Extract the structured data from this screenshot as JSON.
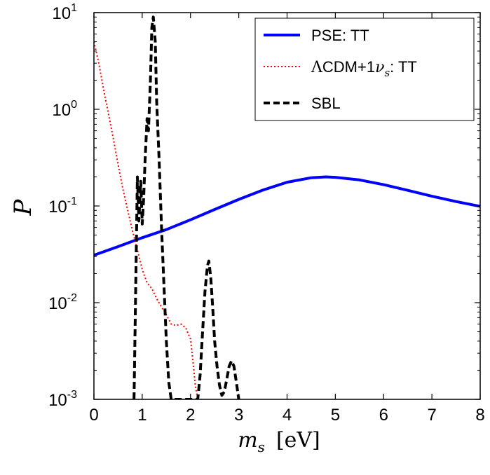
{
  "chart_data": {
    "type": "line",
    "xlabel": "m_s  [eV]",
    "ylabel": "P",
    "xlim": [
      0,
      8
    ],
    "ylim": [
      0.001,
      10
    ],
    "yscale": "log",
    "xticks": [
      0,
      1,
      2,
      3,
      4,
      5,
      6,
      7,
      8
    ],
    "yticks": [
      {
        "value": 0.001,
        "base": "10",
        "exp": "-3"
      },
      {
        "value": 0.01,
        "base": "10",
        "exp": "-2"
      },
      {
        "value": 0.1,
        "base": "10",
        "exp": "-1"
      },
      {
        "value": 1,
        "base": "10",
        "exp": "0"
      },
      {
        "value": 10,
        "base": "10",
        "exp": "1"
      }
    ],
    "grid": false,
    "legend_position": "top-right",
    "series": [
      {
        "name": "PSE: TT",
        "color": "#0000ff",
        "style": "solid",
        "x": [
          0,
          0.5,
          1,
          1.5,
          2,
          2.5,
          3,
          3.5,
          4,
          4.5,
          4.8,
          5,
          5.5,
          6,
          6.5,
          7,
          7.5,
          8
        ],
        "y": [
          0.031,
          0.038,
          0.047,
          0.057,
          0.072,
          0.092,
          0.117,
          0.146,
          0.176,
          0.196,
          0.2,
          0.198,
          0.186,
          0.166,
          0.145,
          0.126,
          0.111,
          0.099
        ]
      },
      {
        "name": "ΛCDM+1ν_s: TT",
        "color": "#ff0000",
        "style": "dotted",
        "x": [
          0,
          0.1,
          0.2,
          0.3,
          0.4,
          0.5,
          0.6,
          0.7,
          0.8,
          0.9,
          1.0,
          1.1,
          1.2,
          1.3,
          1.4,
          1.5,
          1.6,
          1.7,
          1.8,
          1.9,
          2.0,
          2.05,
          2.1,
          2.15
        ],
        "y": [
          5.0,
          3.0,
          1.6,
          0.9,
          0.5,
          0.27,
          0.15,
          0.09,
          0.055,
          0.035,
          0.022,
          0.016,
          0.014,
          0.011,
          0.009,
          0.0075,
          0.006,
          0.0058,
          0.006,
          0.0055,
          0.0042,
          0.0025,
          0.0014,
          0.001
        ]
      },
      {
        "name": "SBL",
        "color": "#000000",
        "style": "dashed",
        "x": [
          0.83,
          0.87,
          0.9,
          0.93,
          0.97,
          1.0,
          1.03,
          1.06,
          1.1,
          1.13,
          1.17,
          1.2,
          1.23,
          1.27,
          1.3,
          1.35,
          1.4,
          1.45,
          1.5,
          1.55,
          1.6,
          2.15,
          2.2,
          2.25,
          2.3,
          2.35,
          2.38,
          2.42,
          2.46,
          2.5,
          2.55,
          2.6,
          2.65,
          2.7,
          2.75,
          2.8,
          2.85,
          2.9,
          2.95,
          3.0
        ],
        "y": [
          0.001,
          0.02,
          0.2,
          0.07,
          0.18,
          0.065,
          0.12,
          0.3,
          0.8,
          0.6,
          2.0,
          7.0,
          9.0,
          5.0,
          1.2,
          0.3,
          0.06,
          0.015,
          0.004,
          0.0015,
          0.001,
          0.001,
          0.0018,
          0.005,
          0.013,
          0.024,
          0.027,
          0.018,
          0.009,
          0.004,
          0.0022,
          0.0014,
          0.0011,
          0.0012,
          0.0016,
          0.0022,
          0.0025,
          0.0022,
          0.0015,
          0.001
        ]
      }
    ]
  }
}
